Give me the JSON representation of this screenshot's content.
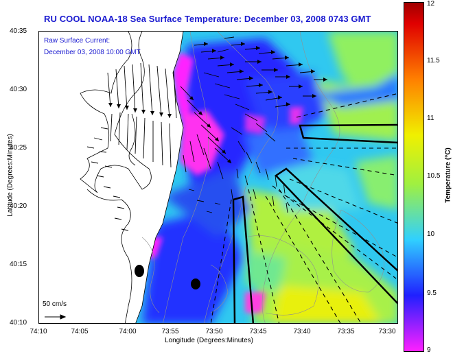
{
  "title": "RU COOL  NOAA-18  Sea Surface Temperature:  December 03, 2008 0743 GMT",
  "current_legend": {
    "line1": "Raw Surface Current:",
    "line2": "December 03, 2008 10:00 GMT"
  },
  "axes": {
    "xlabel": "Longitude (Degrees:Minutes)",
    "ylabel": "Latitude (Degrees:Minutes)",
    "xticks": [
      "74:10",
      "74:05",
      "74:00",
      "73:55",
      "73:50",
      "73:45",
      "73:40",
      "73:35",
      "73:30"
    ],
    "yticks": [
      "40:35",
      "40:30",
      "40:25",
      "40:20",
      "40:15",
      "40:10"
    ]
  },
  "scale_arrow_label": "50 cm/s",
  "colorbar": {
    "label": "Temperature (°C)",
    "ticks": [
      "12",
      "11.5",
      "11",
      "10.5",
      "10",
      "9.5",
      "9"
    ],
    "colors": {
      "magenta": "#ff20ff",
      "blue": "#2020ff",
      "cyan": "#30d0ff",
      "green": "#a0f040",
      "yellow": "#f0f000",
      "orange": "#ff8000",
      "red": "#e00000"
    }
  }
}
